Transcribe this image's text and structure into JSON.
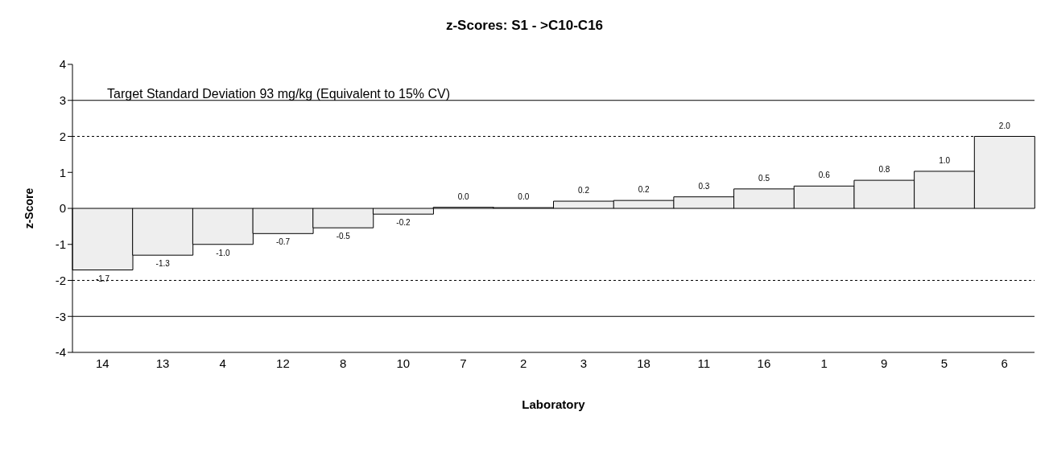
{
  "chart_data": {
    "type": "bar",
    "title": "z-Scores: S1 - >C10-C16",
    "xlabel": "Laboratory",
    "ylabel": "z-Score",
    "categories": [
      "14",
      "13",
      "4",
      "12",
      "8",
      "10",
      "7",
      "2",
      "3",
      "18",
      "11",
      "16",
      "1",
      "9",
      "5",
      "6"
    ],
    "values": [
      -1.71,
      -1.3,
      -1.0,
      -0.7,
      -0.54,
      -0.16,
      0.03,
      0.02,
      0.2,
      0.22,
      0.32,
      0.54,
      0.62,
      0.78,
      1.03,
      2.0
    ],
    "value_labels": [
      "-1.7",
      "-1.3",
      "-1.0",
      "-0.7",
      "-0.5",
      "-0.2",
      "0.0",
      "0.0",
      "0.2",
      "0.2",
      "0.3",
      "0.5",
      "0.6",
      "0.8",
      "1.0",
      "2.0"
    ],
    "color": "#eeeeee",
    "ylim": [
      -4,
      4
    ],
    "yticks": [
      -4,
      -3,
      -2,
      -1,
      0,
      1,
      2,
      3,
      4
    ],
    "grid": false,
    "legend": false,
    "ref_lines": [
      {
        "axis": "y",
        "value": 3,
        "color": "#000000",
        "line_style": "solid"
      },
      {
        "axis": "y",
        "value": 2,
        "color": "#000000",
        "line_style": "dashed"
      },
      {
        "axis": "y",
        "value": -2,
        "color": "#000000",
        "line_style": "dashed"
      },
      {
        "axis": "y",
        "value": -3,
        "color": "#000000",
        "line_style": "solid"
      }
    ],
    "annotations": [
      "Target Standard Deviation 93 mg/kg  (Equivalent to 15% CV)"
    ]
  }
}
